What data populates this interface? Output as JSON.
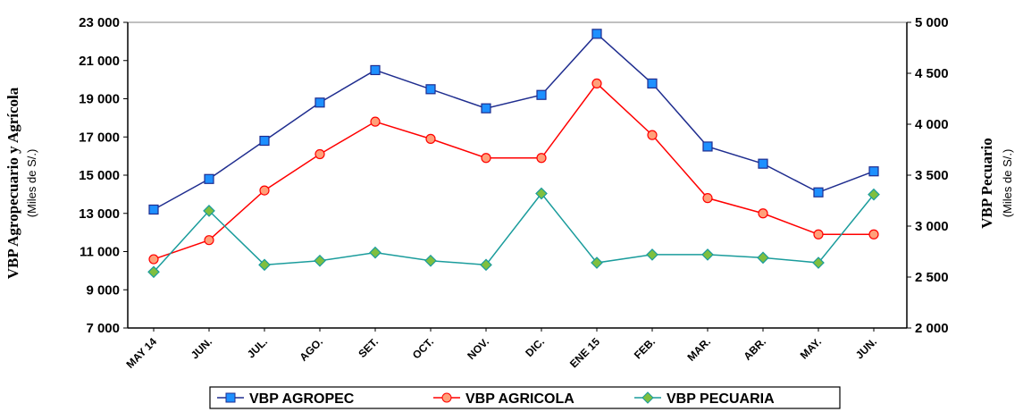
{
  "chart_data": {
    "type": "line",
    "categories": [
      "MAY 14",
      "JUN.",
      "JUL.",
      "AGO.",
      "SET.",
      "OCT.",
      "NOV.",
      "DIC.",
      "ENE 15",
      "FEB.",
      "MAR.",
      "ABR.",
      "MAY.",
      "JUN."
    ],
    "y_left": {
      "title": "VBP Agropecuario y Agrícola",
      "subtitle": "(Miles de S/.)",
      "range": [
        7000,
        23000
      ],
      "ticks": [
        7000,
        9000,
        11000,
        13000,
        15000,
        17000,
        19000,
        21000,
        23000
      ],
      "tick_labels": [
        "7 000",
        "9 000",
        "11 000",
        "13 000",
        "15 000",
        "17 000",
        "19 000",
        "21 000",
        "23 000"
      ]
    },
    "y_right": {
      "title": "VBP Pecuario",
      "subtitle": "(Miles de S/.)",
      "range": [
        2000,
        5000
      ],
      "ticks": [
        2000,
        2500,
        3000,
        3500,
        4000,
        4500,
        5000
      ],
      "tick_labels": [
        "2 000",
        "2 500",
        "3 000",
        "3 500",
        "4 000",
        "4 500",
        "5 000"
      ]
    },
    "grid": false,
    "legend_position": "bottom",
    "series": [
      {
        "name": "VBP AGROPEC",
        "axis": "left",
        "color": "#1f2d8f",
        "marker_color": "#1e90ff",
        "marker": "square",
        "values": [
          13200,
          14800,
          16800,
          18800,
          20500,
          19500,
          18500,
          19200,
          22400,
          19800,
          16500,
          15600,
          14100,
          15200
        ]
      },
      {
        "name": "VBP AGRICOLA",
        "axis": "left",
        "color": "#ff0000",
        "marker_color": "#ffa07a",
        "marker": "circle",
        "values": [
          10600,
          11600,
          14200,
          16100,
          17800,
          16900,
          15900,
          15900,
          19800,
          17100,
          13800,
          13000,
          11900,
          11900
        ]
      },
      {
        "name": "VBP PECUARIA",
        "axis": "right",
        "color": "#1a9c9c",
        "marker_color": "#7fbf3f",
        "marker": "diamond",
        "values": [
          2550,
          3150,
          2620,
          2660,
          2740,
          2660,
          2620,
          3320,
          2640,
          2720,
          2720,
          2690,
          2640,
          3310
        ]
      }
    ]
  }
}
